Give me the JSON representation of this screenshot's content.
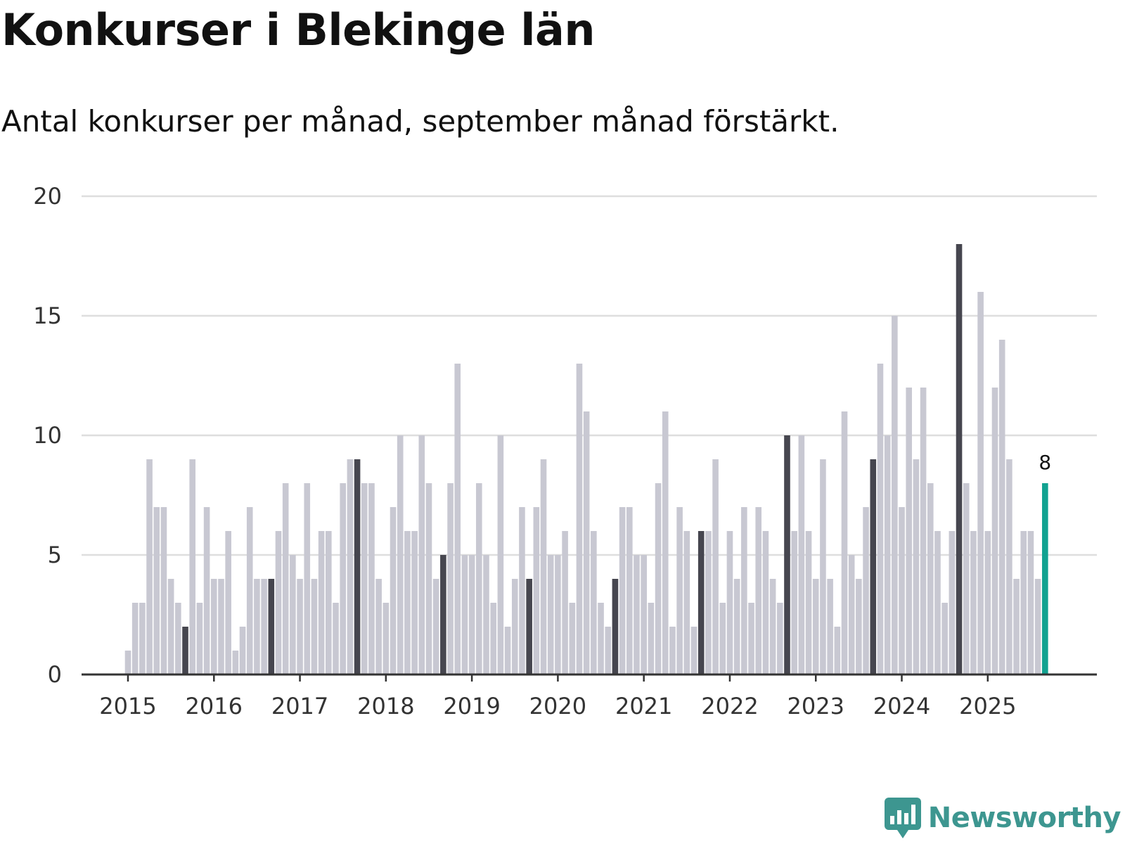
{
  "title": "Konkurser i Blekinge län",
  "subtitle": "Antal konkurser per månad, september månad förstärkt.",
  "brand": "Newsworthy",
  "colors": {
    "normal": "#c8c8d2",
    "september": "#46464f",
    "latest": "#12a291",
    "grid": "#dedede",
    "axis": "#333333",
    "brand": "#3d9690"
  },
  "chart_data": {
    "type": "bar",
    "title": "Konkurser i Blekinge län",
    "subtitle": "Antal konkurser per månad, september månad förstärkt.",
    "xlabel": "",
    "ylabel": "",
    "ylim": [
      0,
      20
    ],
    "yticks": [
      0,
      5,
      10,
      15,
      20
    ],
    "x_tick_labels": [
      "2015",
      "2016",
      "2017",
      "2018",
      "2019",
      "2020",
      "2021",
      "2022",
      "2023",
      "2024",
      "2025"
    ],
    "start": "2015-01",
    "highlight": "september",
    "last_value_label": "8",
    "values": [
      1,
      3,
      3,
      9,
      7,
      7,
      4,
      3,
      2,
      9,
      3,
      7,
      4,
      4,
      6,
      1,
      2,
      7,
      4,
      4,
      4,
      6,
      8,
      5,
      4,
      8,
      4,
      6,
      6,
      3,
      8,
      9,
      9,
      8,
      8,
      4,
      3,
      7,
      10,
      6,
      6,
      10,
      8,
      4,
      5,
      8,
      13,
      5,
      5,
      8,
      5,
      3,
      10,
      2,
      4,
      7,
      4,
      7,
      9,
      5,
      5,
      6,
      3,
      13,
      11,
      6,
      3,
      2,
      4,
      7,
      7,
      5,
      5,
      3,
      8,
      11,
      2,
      7,
      6,
      2,
      6,
      6,
      9,
      3,
      6,
      4,
      7,
      3,
      7,
      6,
      4,
      3,
      10,
      6,
      10,
      6,
      4,
      9,
      4,
      2,
      11,
      5,
      4,
      7,
      9,
      13,
      10,
      15,
      7,
      12,
      9,
      12,
      8,
      6,
      3,
      6,
      18,
      8,
      6,
      16,
      6,
      12,
      14,
      9,
      4,
      6,
      6,
      4,
      8
    ]
  }
}
